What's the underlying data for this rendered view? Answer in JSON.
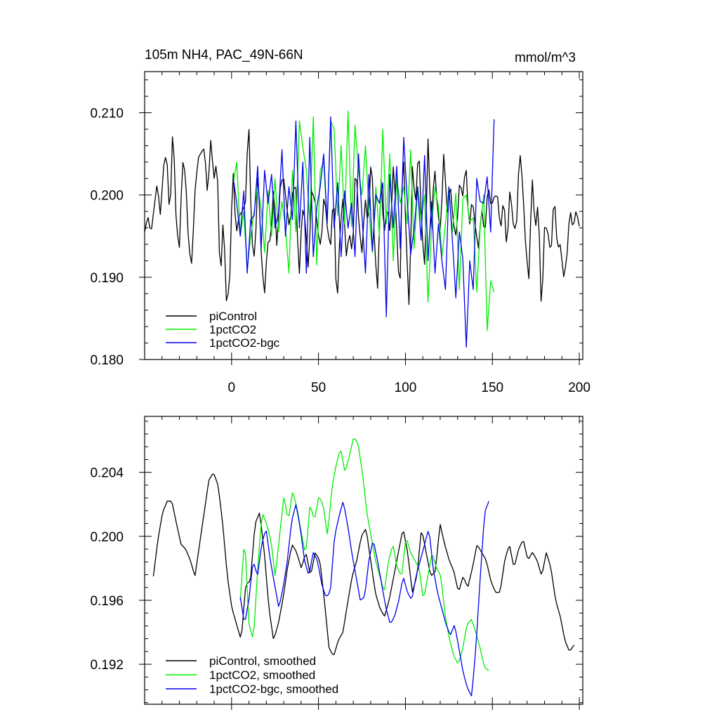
{
  "chart_data": [
    {
      "type": "line",
      "title": "105m NH4, PAC_49N-66N",
      "units": "mmol/m^3",
      "xlim": [
        -50,
        202
      ],
      "ylim": [
        0.18,
        0.215
      ],
      "x_ticks": [
        0,
        50,
        100,
        150,
        200
      ],
      "x_tick_labels": [
        "0",
        "50",
        "100",
        "150",
        "200"
      ],
      "y_ticks": [
        0.18,
        0.19,
        0.2,
        0.21
      ],
      "y_tick_labels": [
        "0.180",
        "0.190",
        "0.200",
        "0.210"
      ],
      "legend_position": "bottom-left",
      "series": [
        {
          "name": "piControl",
          "color": "#000000",
          "x_start": -50,
          "x_end": 200,
          "anchors": [
            0.1955,
            0.1975,
            0.1952,
            0.1985,
            0.2015,
            0.1975,
            0.2035,
            0.2052,
            0.1965,
            0.2092,
            0.1968,
            0.1932,
            0.2042,
            0.2025,
            0.1935,
            0.1915,
            0.2005,
            0.2045,
            0.2052,
            0.2057,
            0.1998,
            0.2068,
            0.2018,
            0.2045,
            0.1888,
            0.1978,
            0.1865,
            0.1895,
            0.204,
            0.195,
            0.1975,
            0.198,
            0.199,
            0.2098,
            0.1945,
            0.192,
            0.2035,
            0.193,
            0.1875,
            0.1942,
            0.1945,
            0.2015,
            0.1935,
            0.2008,
            0.2025,
            0.199,
            0.1958,
            0.2005,
            0.2012,
            0.1893,
            0.1985,
            0.197,
            0.1905,
            0.2005,
            0.1995,
            0.1955,
            0.1935,
            0.2005,
            0.196,
            0.1935,
            0.201,
            0.1853,
            0.1955,
            0.1998,
            0.1925,
            0.1955,
            0.1925,
            0.2045,
            0.1965,
            0.193,
            0.1998,
            0.1958,
            0.2058,
            0.1935,
            0.1885,
            0.2025,
            0.195,
            0.199,
            0.195,
            0.204,
            0.196,
            0.187,
            0.207,
            0.195,
            0.1858,
            0.2035,
            0.1985,
            0.2065,
            0.1955,
            0.191,
            0.2072,
            0.195,
            0.204,
            0.198,
            0.1955,
            0.2055,
            0.1978,
            0.2015,
            0.1965,
            0.1948,
            0.2018,
            0.1998,
            0.204,
            0.1955,
            0.1998,
            0.196,
            0.1935,
            0.1985,
            0.1948,
            0.2015,
            0.1985,
            0.1998,
            0.2,
            0.1955,
            0.2,
            0.193,
            0.201,
            0.1965,
            0.1955,
            0.2058,
            0.2015,
            0.1935,
            0.1898,
            0.2025,
            0.1955,
            0.1995,
            0.185,
            0.1965,
            0.1955,
            0.1925,
            0.2005,
            0.1935,
            0.194,
            0.19,
            0.192,
            0.1985,
            0.1958,
            0.1982,
            0.1962
          ]
        },
        {
          "name": "1pctCO2",
          "color": "#00ee00",
          "x_start": 1,
          "x_end": 151,
          "anchors": [
            0.2015,
            0.204,
            0.195,
            0.198,
            0.191,
            0.195,
            0.198,
            0.201,
            0.1985,
            0.193,
            0.2005,
            0.195,
            0.202,
            0.1955,
            0.1992,
            0.196,
            0.1905,
            0.203,
            0.1955,
            0.209,
            0.2058,
            0.203,
            0.1968,
            0.2095,
            0.1915,
            0.203,
            0.204,
            0.1965,
            0.209,
            0.208,
            0.1975,
            0.206,
            0.1965,
            0.2102,
            0.1962,
            0.2085,
            0.203,
            0.2,
            0.206,
            0.198,
            0.193,
            0.201,
            0.195,
            0.208,
            0.1965,
            0.205,
            0.192,
            0.202,
            0.199,
            0.201,
            0.1965,
            0.2055,
            0.1935,
            0.201,
            0.197,
            0.2,
            0.187,
            0.196,
            0.201,
            0.1985,
            0.1925,
            0.1965,
            0.201,
            0.1955,
            0.2002,
            0.1885,
            0.1995,
            0.2,
            0.1968,
            0.1972,
            0.1882,
            0.196,
            0.2,
            0.1835,
            0.1896,
            0.1882
          ]
        },
        {
          "name": "1pctCO2-bgc",
          "color": "#0000ee",
          "x_start": 1,
          "x_end": 151,
          "anchors": [
            0.202,
            0.199,
            0.195,
            0.2005,
            0.1905,
            0.197,
            0.1975,
            0.2035,
            0.1935,
            0.203,
            0.199,
            0.2025,
            0.196,
            0.1978,
            0.2055,
            0.195,
            0.201,
            0.197,
            0.209,
            0.196,
            0.204,
            0.1905,
            0.207,
            0.1925,
            0.1985,
            0.201,
            0.205,
            0.1965,
            0.2095,
            0.196,
            0.2015,
            0.1925,
            0.2005,
            0.196,
            0.199,
            0.1925,
            0.205,
            0.1975,
            0.1905,
            0.2025,
            0.1932,
            0.2,
            0.199,
            0.2015,
            0.1852,
            0.2025,
            0.196,
            0.2035,
            0.1935,
            0.207,
            0.1995,
            0.1928,
            0.1958,
            0.201,
            0.1945,
            0.2048,
            0.192,
            0.1992,
            0.1905,
            0.1965,
            0.192,
            0.1885,
            0.201,
            0.1945,
            0.1875,
            0.1955,
            0.1923,
            0.1815,
            0.192,
            0.1885,
            0.202,
            0.1992,
            0.199,
            0.2022,
            0.1955,
            0.2092
          ]
        }
      ],
      "legend": [
        {
          "label": "piControl",
          "color": "#000000"
        },
        {
          "label": "1pctCO2",
          "color": "#00ee00"
        },
        {
          "label": "1pctCO2-bgc",
          "color": "#0000ee"
        }
      ]
    },
    {
      "type": "line",
      "title": "",
      "xlim": [
        -50,
        202
      ],
      "ylim": [
        0.1895,
        0.2075
      ],
      "x_ticks": [
        0,
        50,
        100,
        150,
        200
      ],
      "x_tick_labels": [
        "",
        "",
        "",
        "",
        ""
      ],
      "y_ticks": [
        0.192,
        0.196,
        0.2,
        0.204
      ],
      "y_tick_labels": [
        "0.192",
        "0.196",
        "0.200",
        "0.204"
      ],
      "legend_position": "bottom-left",
      "series": [
        {
          "name": "piControl, smoothed",
          "color": "#000000",
          "x_start": -45,
          "x_end": 197,
          "anchors": [
            0.1975,
            0.1998,
            0.2015,
            0.2022,
            0.2022,
            0.2008,
            0.1995,
            0.1992,
            0.1985,
            0.1975,
            0.1995,
            0.2015,
            0.2035,
            0.204,
            0.2032,
            0.2008,
            0.1975,
            0.1955,
            0.1945,
            0.1935,
            0.197,
            0.1972,
            0.2008,
            0.2015,
            0.199,
            0.1955,
            0.1935,
            0.1945,
            0.196,
            0.198,
            0.1995,
            0.199,
            0.198,
            0.199,
            0.1975,
            0.199,
            0.1985,
            0.196,
            0.193,
            0.1925,
            0.1935,
            0.194,
            0.1958,
            0.1975,
            0.1985,
            0.2,
            0.2005,
            0.1985,
            0.1965,
            0.1955,
            0.195,
            0.196,
            0.1975,
            0.199,
            0.2005,
            0.199,
            0.1965,
            0.1975,
            0.2005,
            0.199,
            0.1975,
            0.1978,
            0.2008,
            0.1995,
            0.1985,
            0.1978,
            0.1965,
            0.1975,
            0.1968,
            0.198,
            0.1995,
            0.199,
            0.1985,
            0.1972,
            0.1965,
            0.1965,
            0.1985,
            0.1995,
            0.198,
            0.1992,
            0.1998,
            0.1985,
            0.199,
            0.1985,
            0.1975,
            0.199,
            0.198,
            0.196,
            0.195,
            0.1935,
            0.1928,
            0.1932
          ]
        },
        {
          "name": "1pctCO2, smoothed",
          "color": "#00ee00",
          "x_start": 5,
          "x_end": 148,
          "anchors": [
            0.196,
            0.2,
            0.1945,
            0.1935,
            0.198,
            0.2015,
            0.2008,
            0.1998,
            0.1975,
            0.2,
            0.2025,
            0.201,
            0.2028,
            0.2018,
            0.2002,
            0.1988,
            0.202,
            0.201,
            0.2025,
            0.202,
            0.2,
            0.203,
            0.2045,
            0.2055,
            0.204,
            0.205,
            0.2062,
            0.2058,
            0.204,
            0.2015,
            0.2,
            0.1985,
            0.1975,
            0.1965,
            0.1985,
            0.1995,
            0.198,
            0.1975,
            0.2,
            0.199,
            0.1985,
            0.198,
            0.196,
            0.1975,
            0.199,
            0.198,
            0.1975,
            0.195,
            0.1935,
            0.1925,
            0.192,
            0.193,
            0.1945,
            0.1948,
            0.194,
            0.193,
            0.1918,
            0.1916
          ]
        },
        {
          "name": "1pctCO2-bgc, smoothed",
          "color": "#0000ee",
          "x_start": 5,
          "x_end": 148,
          "anchors": [
            0.1962,
            0.1945,
            0.196,
            0.1985,
            0.1975,
            0.1995,
            0.2005,
            0.1985,
            0.197,
            0.1955,
            0.1968,
            0.1985,
            0.201,
            0.202,
            0.2005,
            0.1985,
            0.1975,
            0.199,
            0.1985,
            0.197,
            0.1962,
            0.1965,
            0.2,
            0.2012,
            0.2022,
            0.2008,
            0.199,
            0.1975,
            0.196,
            0.1962,
            0.1985,
            0.1998,
            0.1985,
            0.197,
            0.1955,
            0.1945,
            0.195,
            0.196,
            0.1975,
            0.1965,
            0.196,
            0.1975,
            0.1985,
            0.1995,
            0.2005,
            0.198,
            0.1965,
            0.1955,
            0.1945,
            0.1938,
            0.1945,
            0.193,
            0.1915,
            0.1905,
            0.19,
            0.1932,
            0.1975,
            0.2015,
            0.2022
          ]
        }
      ],
      "legend": [
        {
          "label": "piControl, smoothed",
          "color": "#000000"
        },
        {
          "label": "1pctCO2, smoothed",
          "color": "#00ee00"
        },
        {
          "label": "1pctCO2-bgc, smoothed",
          "color": "#0000ee"
        }
      ]
    }
  ]
}
